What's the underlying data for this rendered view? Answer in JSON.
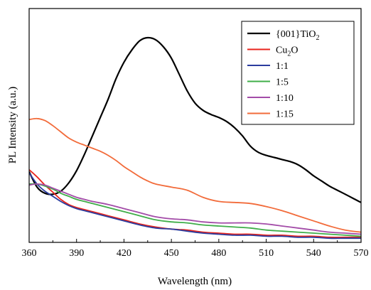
{
  "chart_data": {
    "type": "line",
    "xlabel": "Wavelength (nm)",
    "ylabel": "PL Intensity (a.u.)",
    "xlim": [
      360,
      570
    ],
    "ylim": [
      0,
      1
    ],
    "xticks": [
      360,
      390,
      420,
      450,
      480,
      510,
      540,
      570
    ],
    "xtick_labels": [
      "360",
      "390",
      "420",
      "450",
      "480",
      "510",
      "540",
      "570"
    ],
    "grid": false,
    "legend_position": "top-right",
    "series": [
      {
        "name": "{001}TiO",
        "name_subscript": "2",
        "color": "#000000",
        "x": [
          360,
          365,
          370,
          375,
          380,
          385,
          390,
          395,
          400,
          405,
          410,
          415,
          420,
          425,
          430,
          435,
          440,
          445,
          450,
          455,
          460,
          465,
          470,
          475,
          480,
          485,
          490,
          495,
          500,
          505,
          510,
          515,
          520,
          525,
          530,
          535,
          540,
          545,
          550,
          555,
          560,
          565,
          570
        ],
        "y": [
          0.345,
          0.27,
          0.24,
          0.235,
          0.25,
          0.29,
          0.35,
          0.43,
          0.52,
          0.61,
          0.7,
          0.8,
          0.88,
          0.94,
          0.985,
          1.0,
          0.99,
          0.955,
          0.9,
          0.82,
          0.74,
          0.68,
          0.645,
          0.625,
          0.61,
          0.59,
          0.56,
          0.52,
          0.47,
          0.44,
          0.425,
          0.415,
          0.405,
          0.395,
          0.38,
          0.355,
          0.325,
          0.3,
          0.275,
          0.255,
          0.235,
          0.215,
          0.195
        ]
      },
      {
        "name": "Cu",
        "name_subscript": "2",
        "name_suffix": "O",
        "color": "#e8241c",
        "x": [
          360,
          365,
          370,
          375,
          380,
          385,
          390,
          395,
          400,
          410,
          420,
          430,
          440,
          450,
          460,
          470,
          480,
          490,
          500,
          510,
          520,
          530,
          540,
          550,
          560,
          570
        ],
        "y": [
          0.355,
          0.32,
          0.28,
          0.245,
          0.21,
          0.185,
          0.17,
          0.16,
          0.15,
          0.13,
          0.11,
          0.09,
          0.075,
          0.065,
          0.06,
          0.05,
          0.045,
          0.04,
          0.04,
          0.035,
          0.035,
          0.03,
          0.03,
          0.025,
          0.025,
          0.025
        ]
      },
      {
        "name": "1:1",
        "color": "#2b3c9e",
        "x": [
          360,
          365,
          370,
          375,
          380,
          385,
          390,
          395,
          400,
          410,
          420,
          430,
          440,
          450,
          460,
          470,
          480,
          490,
          500,
          510,
          520,
          530,
          540,
          550,
          560,
          570
        ],
        "y": [
          0.34,
          0.285,
          0.25,
          0.225,
          0.2,
          0.18,
          0.165,
          0.155,
          0.145,
          0.125,
          0.105,
          0.085,
          0.07,
          0.065,
          0.055,
          0.045,
          0.04,
          0.035,
          0.035,
          0.03,
          0.03,
          0.025,
          0.025,
          0.02,
          0.02,
          0.02
        ]
      },
      {
        "name": "1:5",
        "color": "#3fae49",
        "x": [
          360,
          365,
          370,
          375,
          380,
          385,
          390,
          395,
          400,
          410,
          420,
          430,
          440,
          450,
          460,
          470,
          480,
          490,
          500,
          510,
          520,
          530,
          540,
          550,
          560,
          570
        ],
        "y": [
          0.285,
          0.285,
          0.275,
          0.26,
          0.24,
          0.225,
          0.21,
          0.2,
          0.19,
          0.17,
          0.15,
          0.13,
          0.11,
          0.1,
          0.095,
          0.085,
          0.08,
          0.075,
          0.07,
          0.06,
          0.055,
          0.05,
          0.045,
          0.04,
          0.035,
          0.03
        ]
      },
      {
        "name": "1:10",
        "color": "#a34ca8",
        "x": [
          360,
          365,
          370,
          375,
          380,
          385,
          390,
          395,
          400,
          410,
          420,
          430,
          440,
          450,
          460,
          470,
          480,
          490,
          500,
          510,
          520,
          530,
          540,
          550,
          560,
          570
        ],
        "y": [
          0.28,
          0.285,
          0.28,
          0.265,
          0.25,
          0.235,
          0.22,
          0.21,
          0.2,
          0.185,
          0.165,
          0.145,
          0.125,
          0.115,
          0.11,
          0.1,
          0.095,
          0.095,
          0.095,
          0.09,
          0.08,
          0.07,
          0.06,
          0.05,
          0.045,
          0.04
        ]
      },
      {
        "name": "1:15",
        "color": "#f26b3a",
        "x": [
          360,
          365,
          370,
          375,
          380,
          385,
          390,
          395,
          400,
          405,
          410,
          415,
          420,
          425,
          430,
          435,
          440,
          450,
          460,
          470,
          480,
          490,
          500,
          510,
          520,
          530,
          540,
          550,
          560,
          570
        ],
        "y": [
          0.6,
          0.605,
          0.595,
          0.57,
          0.54,
          0.51,
          0.49,
          0.475,
          0.46,
          0.445,
          0.425,
          0.4,
          0.37,
          0.345,
          0.32,
          0.3,
          0.285,
          0.27,
          0.255,
          0.22,
          0.2,
          0.195,
          0.19,
          0.175,
          0.155,
          0.13,
          0.105,
          0.08,
          0.06,
          0.05
        ]
      }
    ]
  }
}
